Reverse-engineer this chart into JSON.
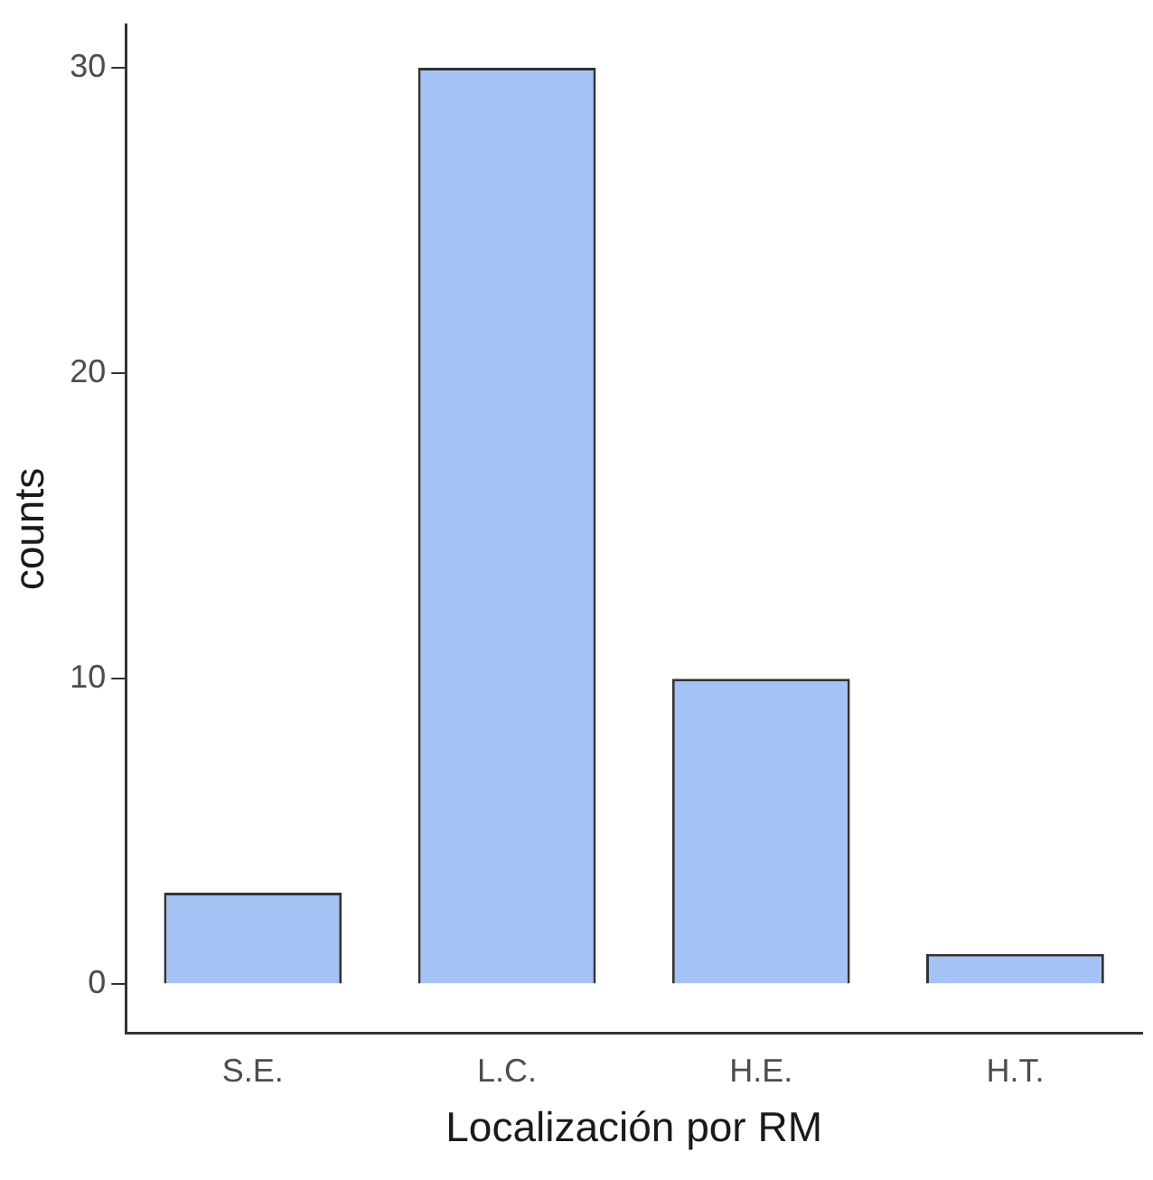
{
  "chart_data": {
    "type": "bar",
    "xlabel": "Localización por RM",
    "ylabel": "counts",
    "categories": [
      "S.E.",
      "L.C.",
      "H.E.",
      "H.T."
    ],
    "values": [
      3,
      30,
      10,
      1
    ],
    "color": "#a4c2f4",
    "ylim": [
      -1.6,
      31.4
    ],
    "yticks": [
      0,
      10,
      20,
      30
    ],
    "grid": false,
    "legend": false
  }
}
